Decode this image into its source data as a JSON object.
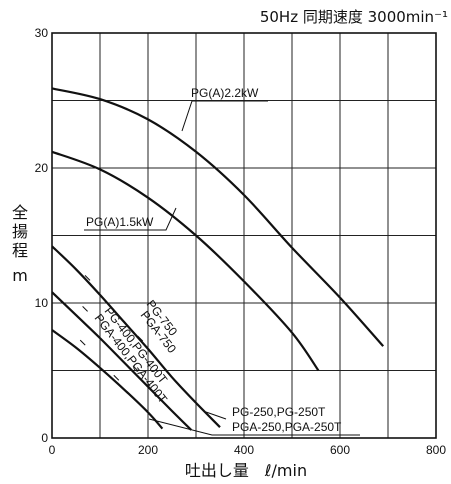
{
  "chart_data": {
    "type": "line",
    "title": "50Hz 同期速度 3000min⁻¹",
    "xlabel": "吐出し量　ℓ/min",
    "ylabel": [
      "全",
      "揚",
      "程",
      "m"
    ],
    "xlim": [
      0,
      800
    ],
    "ylim": [
      0,
      30
    ],
    "x_ticks": [
      0,
      200,
      400,
      600,
      800
    ],
    "y_ticks": [
      0,
      10,
      20,
      30
    ],
    "grid": true,
    "series": [
      {
        "name": "PG(A)2.2kW",
        "points": [
          [
            0,
            25.9
          ],
          [
            100,
            25.1
          ],
          [
            200,
            23.6
          ],
          [
            300,
            21.2
          ],
          [
            400,
            18.0
          ],
          [
            500,
            14.1
          ],
          [
            600,
            10.4
          ],
          [
            690,
            6.8
          ]
        ]
      },
      {
        "name": "PG(A)1.5kW",
        "points": [
          [
            0,
            21.2
          ],
          [
            100,
            19.9
          ],
          [
            200,
            17.8
          ],
          [
            300,
            15.0
          ],
          [
            400,
            11.6
          ],
          [
            500,
            7.8
          ],
          [
            555,
            5.0
          ]
        ]
      },
      {
        "name": "PG-750,PGA-750",
        "points": [
          [
            0,
            14.2
          ],
          [
            50,
            12.5
          ],
          [
            100,
            10.6
          ],
          [
            150,
            8.6
          ],
          [
            200,
            6.6
          ],
          [
            250,
            4.5
          ],
          [
            300,
            2.6
          ],
          [
            350,
            0.8
          ]
        ]
      },
      {
        "name": "PG-400,PG-400T,PGA-400,PGA-400T",
        "points": [
          [
            0,
            10.8
          ],
          [
            50,
            9.1
          ],
          [
            100,
            7.4
          ],
          [
            150,
            5.6
          ],
          [
            200,
            3.8
          ],
          [
            250,
            2.0
          ],
          [
            290,
            0.6
          ]
        ]
      },
      {
        "name": "PG-250,PG-250T,PGA-250,PGA-250T",
        "points": [
          [
            0,
            8.0
          ],
          [
            50,
            6.7
          ],
          [
            100,
            5.2
          ],
          [
            150,
            3.6
          ],
          [
            200,
            1.9
          ],
          [
            230,
            0.7
          ]
        ]
      }
    ],
    "annotations": [
      "PG(A)2.2kW",
      "PG(A)1.5kW",
      "PG-750",
      "PGA-750",
      "PG-400,PG-400T",
      "PGA-400,PGA-400T",
      "PG-250,PG-250T",
      "PGA-250,PGA-250T"
    ]
  }
}
